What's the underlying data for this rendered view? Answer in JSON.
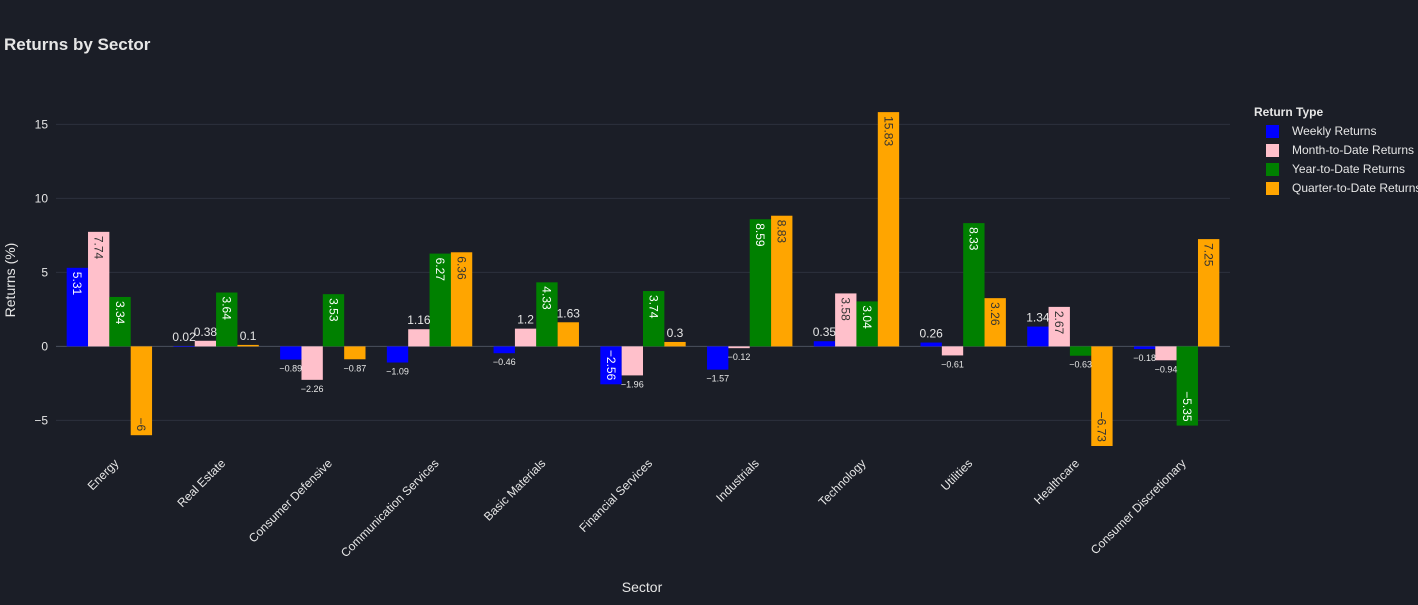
{
  "chart_data": {
    "type": "bar",
    "title": "Returns by Sector",
    "xlabel": "Sector",
    "ylabel": "Returns (%)",
    "ylim": [
      -7,
      18
    ],
    "yticks": [
      -5,
      0,
      5,
      10,
      15
    ],
    "ytick_labels": [
      "−5",
      "0",
      "5",
      "10",
      "15"
    ],
    "grid": true,
    "legend_title": "Return Type",
    "legend_position": "top-right",
    "categories": [
      "Energy",
      "Real Estate",
      "Consumer Defensive",
      "Communication Services",
      "Basic Materials",
      "Financial Services",
      "Industrials",
      "Technology",
      "Utilities",
      "Healthcare",
      "Consumer Discretionary"
    ],
    "series": [
      {
        "name": "Weekly Returns",
        "color": "#0000ff",
        "values": [
          5.31,
          0.02,
          -0.89,
          -1.09,
          -0.46,
          -2.56,
          -1.57,
          0.35,
          0.26,
          1.34,
          -0.18
        ],
        "labels": [
          "5.31",
          "0.02",
          "−0.89",
          "−1.09",
          "−0.46",
          "−2.56",
          "−1.57",
          "0.35",
          "0.26",
          "1.34",
          "−0.18"
        ]
      },
      {
        "name": "Month-to-Date Returns",
        "color": "#ffc0cb",
        "values": [
          7.74,
          0.38,
          -2.26,
          1.16,
          1.2,
          -1.96,
          -0.12,
          3.58,
          -0.61,
          2.67,
          -0.94
        ],
        "labels": [
          "7.74",
          "0.38",
          "−2.26",
          "1.16",
          "1.2",
          "−1.96",
          "−0.12",
          "3.58",
          "−0.61",
          "2.67",
          "−0.94"
        ]
      },
      {
        "name": "Year-to-Date Returns",
        "color": "#008000",
        "values": [
          3.34,
          3.64,
          3.53,
          6.27,
          4.33,
          3.74,
          8.59,
          3.04,
          8.33,
          -0.63,
          -5.35
        ],
        "labels": [
          "3.34",
          "3.64",
          "3.53",
          "6.27",
          "4.33",
          "3.74",
          "8.59",
          "3.04",
          "8.33",
          "−0.63",
          "−5.35"
        ]
      },
      {
        "name": "Quarter-to-Date Returns",
        "color": "#ffa500",
        "values": [
          -6,
          0.1,
          -0.87,
          6.36,
          1.63,
          0.3,
          8.83,
          15.83,
          3.26,
          -6.73,
          7.25
        ],
        "labels": [
          "−6",
          "0.1",
          "−0.87",
          "6.36",
          "1.63",
          "0.3",
          "8.83",
          "15.83",
          "3.26",
          "−6.73",
          "7.25"
        ]
      }
    ]
  }
}
